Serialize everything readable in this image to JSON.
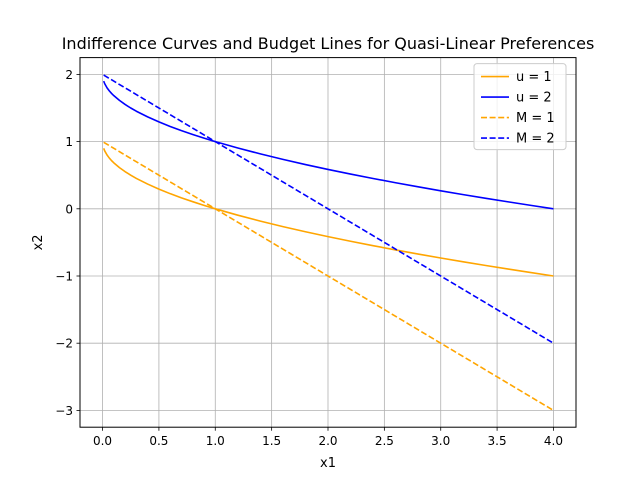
{
  "chart_data": {
    "type": "line",
    "title": "Indifference Curves and Budget Lines for Quasi-Linear Preferences",
    "xlabel": "x1",
    "ylabel": "x2",
    "xlim": [
      -0.2,
      4.2
    ],
    "ylim": [
      -3.25,
      2.25
    ],
    "xticks": [
      0.0,
      0.5,
      1.0,
      1.5,
      2.0,
      2.5,
      3.0,
      3.5,
      4.0
    ],
    "xtick_labels": [
      "0.0",
      "0.5",
      "1.0",
      "1.5",
      "2.0",
      "2.5",
      "3.0",
      "3.5",
      "4.0"
    ],
    "yticks": [
      -3,
      -2,
      -1,
      0,
      1,
      2
    ],
    "ytick_labels": [
      "−3",
      "−2",
      "−1",
      "0",
      "1",
      "2"
    ],
    "grid": true,
    "legend_position": "top-right",
    "series": [
      {
        "name": "u = 1",
        "color": "#ffa500",
        "style": "solid",
        "x": [
          0.01,
          0.02,
          0.04,
          0.06,
          0.08,
          0.1,
          0.15,
          0.2,
          0.25,
          0.3,
          0.4,
          0.5,
          0.6,
          0.7,
          0.8,
          0.9,
          1.0,
          1.2,
          1.4,
          1.6,
          1.8,
          2.0,
          2.2,
          2.4,
          2.6,
          2.8,
          3.0,
          3.2,
          3.4,
          3.6,
          3.8,
          4.0
        ],
        "y": [
          0.9,
          0.859,
          0.8,
          0.755,
          0.717,
          0.684,
          0.613,
          0.553,
          0.5,
          0.452,
          0.368,
          0.293,
          0.225,
          0.163,
          0.106,
          0.051,
          0.0,
          -0.095,
          -0.183,
          -0.265,
          -0.342,
          -0.414,
          -0.483,
          -0.549,
          -0.612,
          -0.673,
          -0.732,
          -0.789,
          -0.844,
          -0.897,
          -0.949,
          -1.0
        ]
      },
      {
        "name": "u = 2",
        "color": "#0000ff",
        "style": "solid",
        "x": [
          0.01,
          0.02,
          0.04,
          0.06,
          0.08,
          0.1,
          0.15,
          0.2,
          0.25,
          0.3,
          0.4,
          0.5,
          0.6,
          0.7,
          0.8,
          0.9,
          1.0,
          1.2,
          1.4,
          1.6,
          1.8,
          2.0,
          2.2,
          2.4,
          2.6,
          2.8,
          3.0,
          3.2,
          3.4,
          3.6,
          3.8,
          4.0
        ],
        "y": [
          1.9,
          1.859,
          1.8,
          1.755,
          1.717,
          1.684,
          1.613,
          1.553,
          1.5,
          1.452,
          1.368,
          1.293,
          1.225,
          1.163,
          1.106,
          1.051,
          1.0,
          0.905,
          0.817,
          0.735,
          0.658,
          0.586,
          0.517,
          0.451,
          0.388,
          0.327,
          0.268,
          0.211,
          0.156,
          0.103,
          0.051,
          0.0
        ]
      },
      {
        "name": "M = 1",
        "color": "#ffa500",
        "style": "dashed",
        "x": [
          0.01,
          4.0
        ],
        "y": [
          0.99,
          -3.0
        ]
      },
      {
        "name": "M = 2",
        "color": "#0000ff",
        "style": "dashed",
        "x": [
          0.01,
          4.0
        ],
        "y": [
          1.99,
          -2.0
        ]
      }
    ]
  }
}
